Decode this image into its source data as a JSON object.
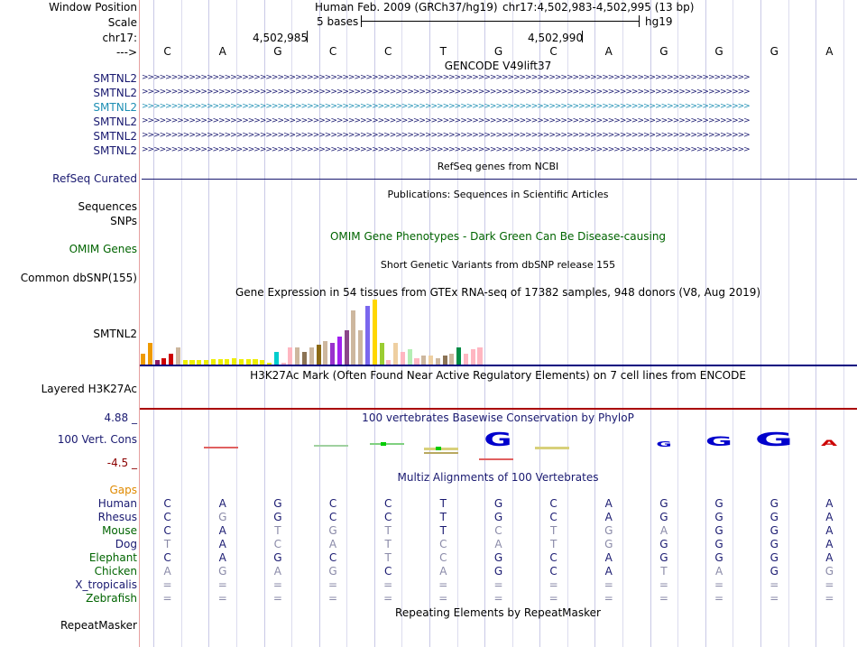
{
  "colors": {
    "navy": "#191970",
    "gtex_line": "#000080",
    "h3k27_line": "#aa0000",
    "gridline": "#c9c9e6",
    "cons_blue": "#0000cc"
  },
  "header": {
    "window_position_label": "Window Position",
    "scale_label": "Scale",
    "chrom_label": "chr17:",
    "arrow_label": "--->",
    "assembly_info": "Human Feb. 2009 (GRCh37/hg19)",
    "position_info": "chr17:4,502,983-4,502,995 (13 bp)",
    "scale_text": "5 bases",
    "db_label": "hg19",
    "pos_tick_1": "4,502,985",
    "pos_tick_2": "4,502,990"
  },
  "bases": [
    "C",
    "A",
    "G",
    "C",
    "C",
    "T",
    "G",
    "C",
    "A",
    "G",
    "G",
    "G",
    "A"
  ],
  "tracks": {
    "gencode": {
      "title": "GENCODE V49lift37",
      "rows": [
        "SMTNL2",
        "SMTNL2",
        "SMTNL2",
        "SMTNL2",
        "SMTNL2",
        "SMTNL2"
      ],
      "chevrons": ">>>>>>>>>>>>>>>>>>>>>>>>>>>>>>>>>>>>>>>>>>>>>>>>>>>>>>>>>>>>>>>>>>>>>>>>>>>>>>>>>>>>>>>>>>>>>>>>>>>>>>>"
    },
    "refseq": {
      "title": "RefSeq genes from NCBI",
      "label": "RefSeq Curated"
    },
    "publications": {
      "title": "Publications: Sequences in Scientific Articles",
      "label_1": "Sequences",
      "label_2": "SNPs"
    },
    "omim": {
      "title": "OMIM Gene Phenotypes - Dark Green Can Be Disease-causing",
      "label": "OMIM Genes"
    },
    "dbsnp": {
      "title": "Short Genetic Variants from dbSNP release 155",
      "label": "Common dbSNP(155)"
    },
    "gtex": {
      "title": "Gene Expression in 54 tissues from GTEx RNA-seq of 17382 samples, 948 donors (V8, Aug 2019)",
      "label": "SMTNL2"
    },
    "h3k27ac": {
      "title": "H3K27Ac Mark (Often Found Near Active Regulatory Elements) on 7 cell lines from ENCODE",
      "label": "Layered H3K27Ac"
    },
    "phylop": {
      "title": "100 vertebrates Basewise Conservation by PhyloP",
      "label": "100 Vert. Cons",
      "max": "4.88 _",
      "min": "-4.5 _"
    },
    "multiz": {
      "title": "Multiz Alignments of 100 Vertebrates",
      "gaps_label": "Gaps",
      "species": [
        {
          "name": "Human",
          "seq": [
            "C",
            "A",
            "G",
            "C",
            "C",
            "T",
            "G",
            "C",
            "A",
            "G",
            "G",
            "G",
            "A"
          ],
          "dim": [
            0,
            0,
            0,
            0,
            0,
            0,
            0,
            0,
            0,
            0,
            0,
            0,
            0
          ]
        },
        {
          "name": "Rhesus",
          "seq": [
            "C",
            "G",
            "G",
            "C",
            "C",
            "T",
            "G",
            "C",
            "A",
            "G",
            "G",
            "G",
            "A"
          ],
          "dim": [
            0,
            1,
            0,
            0,
            0,
            0,
            0,
            0,
            0,
            0,
            0,
            0,
            0
          ]
        },
        {
          "name": "Mouse",
          "seq": [
            "C",
            "A",
            "T",
            "G",
            "T",
            "T",
            "C",
            "T",
            "G",
            "A",
            "G",
            "G",
            "A"
          ],
          "dim": [
            0,
            0,
            1,
            1,
            1,
            0,
            1,
            1,
            1,
            1,
            0,
            0,
            0
          ]
        },
        {
          "name": "Dog",
          "seq": [
            "T",
            "A",
            "C",
            "A",
            "T",
            "C",
            "A",
            "T",
            "G",
            "G",
            "G",
            "G",
            "A"
          ],
          "dim": [
            1,
            0,
            1,
            1,
            1,
            1,
            1,
            1,
            1,
            0,
            0,
            0,
            0
          ]
        },
        {
          "name": "Elephant",
          "seq": [
            "C",
            "A",
            "G",
            "C",
            "T",
            "C",
            "G",
            "C",
            "A",
            "G",
            "G",
            "G",
            "A"
          ],
          "dim": [
            0,
            0,
            0,
            0,
            1,
            1,
            0,
            0,
            0,
            0,
            0,
            0,
            0
          ]
        },
        {
          "name": "Chicken",
          "seq": [
            "A",
            "G",
            "A",
            "G",
            "C",
            "A",
            "G",
            "C",
            "A",
            "T",
            "A",
            "G",
            "G"
          ],
          "dim": [
            1,
            1,
            1,
            1,
            0,
            1,
            0,
            0,
            0,
            1,
            1,
            0,
            1
          ]
        },
        {
          "name": "X_tropicalis",
          "seq": [
            "=",
            "=",
            "=",
            "=",
            "=",
            "=",
            "=",
            "=",
            "=",
            "=",
            "=",
            "=",
            "="
          ],
          "dim": [
            1,
            1,
            1,
            1,
            1,
            1,
            1,
            1,
            1,
            1,
            1,
            1,
            1
          ]
        },
        {
          "name": "Zebrafish",
          "seq": [
            "=",
            "=",
            "=",
            "=",
            "=",
            "=",
            "=",
            "=",
            "=",
            "=",
            "=",
            "=",
            "="
          ],
          "dim": [
            1,
            1,
            1,
            1,
            1,
            1,
            1,
            1,
            1,
            1,
            1,
            1,
            1
          ]
        }
      ]
    },
    "repeatmasker": {
      "title": "Repeating Elements by RepeatMasker",
      "label": "RepeatMasker"
    }
  },
  "gtex_values": [
    5,
    10,
    2,
    3,
    5,
    8,
    2,
    2,
    2,
    2,
    2.5,
    2.5,
    2.5,
    3,
    2.5,
    2.5,
    2.5,
    2,
    1,
    6,
    1,
    8,
    8,
    6,
    8,
    9,
    11,
    10,
    13,
    16,
    25,
    16,
    27,
    30,
    10,
    2,
    10,
    6,
    7,
    3,
    4,
    4,
    3,
    4,
    5,
    8,
    5,
    7,
    8
  ],
  "gtex_colors": [
    "#ee9a00",
    "#ee9a00",
    "#8b1c62",
    "#cd0000",
    "#cd0000",
    "#cdb79e",
    "#eeee00",
    "#eeee00",
    "#eeee00",
    "#eeee00",
    "#eeee00",
    "#eeee00",
    "#eeee00",
    "#eeee00",
    "#eeee00",
    "#eeee00",
    "#eeee00",
    "#eeee00",
    "#eeee00",
    "#00cdcd",
    "#ffb6c1",
    "#ffb6c1",
    "#cdb79e",
    "#8b7355",
    "#cdb79e",
    "#8b6914",
    "#cdb79e",
    "#9a32cd",
    "#a020f0",
    "#8b4789",
    "#cdb79e",
    "#cdb79e",
    "#7a67ee",
    "#ffd700",
    "#9acd32",
    "#ffb6c1",
    "#eecfa1",
    "#ffb6c1",
    "#b4eeb4",
    "#ffb6c1",
    "#cdb79e",
    "#eecfa1",
    "#cdb79e",
    "#8b7355",
    "#cdb79e",
    "#008b45",
    "#ffb6c1",
    "#ffb6c1",
    "#ffb6c1"
  ],
  "conservation": [
    {
      "base": "G",
      "col": 6,
      "color": "#0000cc",
      "size": 20
    },
    {
      "base": "G",
      "col": 10,
      "color": "#0000cc",
      "size": 14
    },
    {
      "base": "G",
      "col": 11,
      "color": "#0000cc",
      "size": 20
    },
    {
      "base": "G",
      "col": 9,
      "color": "#0000cc",
      "size": 8
    },
    {
      "base": "A",
      "col": 12,
      "color": "#cc0000",
      "size": 9
    }
  ]
}
